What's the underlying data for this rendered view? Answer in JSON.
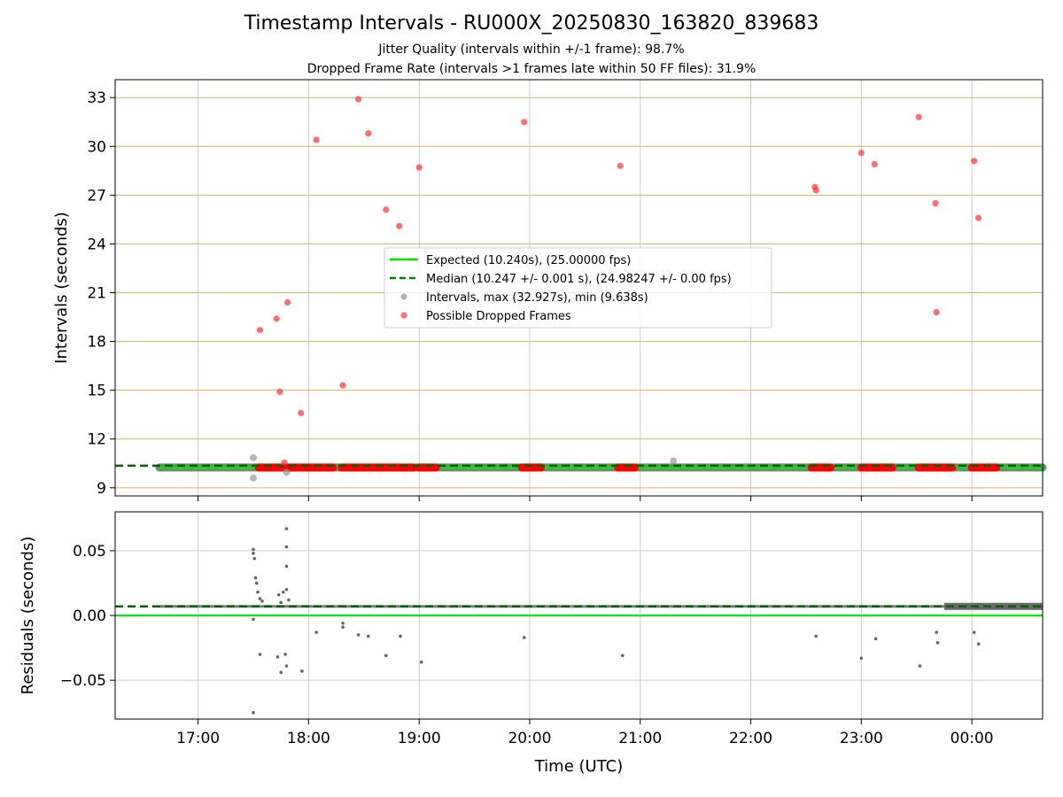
{
  "chart_data": [
    {
      "type": "scatter",
      "title": "Timestamp Intervals - RU000X_20250830_163820_839683",
      "subtitle_lines": [
        "Jitter Quality (intervals within +/-1 frame): 98.7%",
        "Dropped Frame Rate (intervals >1 frames late within 50 FF files): 31.9%"
      ],
      "xlabel": "",
      "ylabel": "Intervals (seconds)",
      "xlim_hours": [
        16.25,
        24.64
      ],
      "ylim": [
        8.5,
        34.1
      ],
      "yticks": [
        9,
        12,
        15,
        18,
        21,
        24,
        27,
        30,
        33
      ],
      "ytick_labels": [
        "9",
        "12",
        "15",
        "18",
        "21",
        "24",
        "27",
        "30",
        "33"
      ],
      "grid": true,
      "legend_position": "center",
      "legend": [
        {
          "label": "Expected (10.240s), (25.00000 fps)",
          "style": "solid-line",
          "color": "#00e600"
        },
        {
          "label": "Median (10.247 +/- 0.001 s), (24.98247 +/- 0.00 fps)",
          "style": "dashed-line",
          "color": "#008000"
        },
        {
          "label": "Intervals, max (32.927s), min (9.638s)",
          "style": "marker",
          "color": "#999999"
        },
        {
          "label": "Possible Dropped Frames",
          "style": "marker",
          "color": "#ff4040"
        }
      ],
      "expected_value": 10.24,
      "median_value": 10.247,
      "interval_band": {
        "y": 10.247,
        "x_ranges": [
          [
            16.65,
            24.64
          ]
        ]
      },
      "dropped_band": {
        "y": 10.24,
        "x_ranges": [
          [
            17.55,
            18.22
          ],
          [
            18.3,
            18.95
          ],
          [
            19.0,
            19.15
          ],
          [
            19.93,
            20.1
          ],
          [
            20.8,
            20.95
          ],
          [
            22.55,
            22.72
          ],
          [
            23.0,
            23.28
          ],
          [
            23.52,
            23.82
          ],
          [
            24.0,
            24.22
          ]
        ]
      },
      "dropped_points": [
        {
          "x": 17.56,
          "y": 18.7
        },
        {
          "x": 17.71,
          "y": 19.4
        },
        {
          "x": 17.74,
          "y": 14.9
        },
        {
          "x": 17.81,
          "y": 20.4
        },
        {
          "x": 17.93,
          "y": 13.6
        },
        {
          "x": 18.07,
          "y": 30.4
        },
        {
          "x": 18.31,
          "y": 15.3
        },
        {
          "x": 18.45,
          "y": 32.9
        },
        {
          "x": 18.54,
          "y": 30.8
        },
        {
          "x": 18.7,
          "y": 26.1
        },
        {
          "x": 18.82,
          "y": 25.1
        },
        {
          "x": 19.0,
          "y": 28.7
        },
        {
          "x": 19.95,
          "y": 31.5
        },
        {
          "x": 20.82,
          "y": 28.8
        },
        {
          "x": 22.58,
          "y": 27.5
        },
        {
          "x": 22.59,
          "y": 27.3
        },
        {
          "x": 23.0,
          "y": 29.6
        },
        {
          "x": 23.12,
          "y": 28.9
        },
        {
          "x": 23.52,
          "y": 31.8
        },
        {
          "x": 23.67,
          "y": 26.5
        },
        {
          "x": 23.68,
          "y": 19.8
        },
        {
          "x": 24.02,
          "y": 29.1
        },
        {
          "x": 24.06,
          "y": 25.6
        },
        {
          "x": 17.78,
          "y": 10.55
        }
      ],
      "interval_outliers": [
        {
          "x": 17.5,
          "y": 10.85
        },
        {
          "x": 17.5,
          "y": 9.6
        },
        {
          "x": 17.8,
          "y": 9.95
        },
        {
          "x": 21.3,
          "y": 10.65
        }
      ]
    },
    {
      "type": "scatter",
      "xlabel": "Time (UTC)",
      "ylabel": "Residuals (seconds)",
      "xlim_hours": [
        16.25,
        24.64
      ],
      "ylim": [
        -0.08,
        0.08
      ],
      "yticks": [
        -0.05,
        0.0,
        0.05
      ],
      "ytick_labels": [
        "−0.05",
        "0.00",
        "0.05"
      ],
      "xticks_hours": [
        17,
        18,
        19,
        20,
        21,
        22,
        23,
        24
      ],
      "xtick_labels": [
        "17:00",
        "18:00",
        "19:00",
        "20:00",
        "21:00",
        "22:00",
        "23:00",
        "00:00"
      ],
      "grid": true,
      "expected_residual": 0.0,
      "median_residual": 0.007,
      "residual_band": {
        "y": 0.007,
        "x_ranges": [
          [
            16.65,
            24.64
          ]
        ]
      },
      "residual_outliers": [
        {
          "x": 17.5,
          "y": 0.051
        },
        {
          "x": 17.5,
          "y": 0.048
        },
        {
          "x": 17.51,
          "y": 0.044
        },
        {
          "x": 17.52,
          "y": 0.029
        },
        {
          "x": 17.53,
          "y": 0.025
        },
        {
          "x": 17.54,
          "y": 0.018
        },
        {
          "x": 17.56,
          "y": 0.013
        },
        {
          "x": 17.58,
          "y": 0.011
        },
        {
          "x": 17.5,
          "y": -0.075
        },
        {
          "x": 17.5,
          "y": -0.003
        },
        {
          "x": 17.56,
          "y": -0.03
        },
        {
          "x": 17.72,
          "y": -0.032
        },
        {
          "x": 17.75,
          "y": -0.044
        },
        {
          "x": 17.79,
          "y": -0.03
        },
        {
          "x": 17.8,
          "y": -0.039
        },
        {
          "x": 17.94,
          "y": -0.043
        },
        {
          "x": 17.8,
          "y": 0.067
        },
        {
          "x": 17.8,
          "y": 0.053
        },
        {
          "x": 17.8,
          "y": 0.038
        },
        {
          "x": 17.77,
          "y": 0.018
        },
        {
          "x": 17.8,
          "y": 0.02
        },
        {
          "x": 17.82,
          "y": 0.012
        },
        {
          "x": 17.73,
          "y": 0.016
        },
        {
          "x": 17.75,
          "y": 0.01
        },
        {
          "x": 18.07,
          "y": -0.013
        },
        {
          "x": 18.31,
          "y": -0.009
        },
        {
          "x": 18.31,
          "y": -0.006
        },
        {
          "x": 18.45,
          "y": -0.015
        },
        {
          "x": 18.54,
          "y": -0.016
        },
        {
          "x": 18.7,
          "y": -0.031
        },
        {
          "x": 18.83,
          "y": -0.016
        },
        {
          "x": 19.02,
          "y": -0.036
        },
        {
          "x": 19.95,
          "y": -0.017
        },
        {
          "x": 20.84,
          "y": -0.031
        },
        {
          "x": 22.59,
          "y": -0.016
        },
        {
          "x": 23.0,
          "y": -0.033
        },
        {
          "x": 23.13,
          "y": -0.018
        },
        {
          "x": 23.53,
          "y": -0.039
        },
        {
          "x": 23.68,
          "y": -0.013
        },
        {
          "x": 23.69,
          "y": -0.021
        },
        {
          "x": 24.02,
          "y": -0.013
        },
        {
          "x": 24.06,
          "y": -0.022
        }
      ]
    }
  ]
}
